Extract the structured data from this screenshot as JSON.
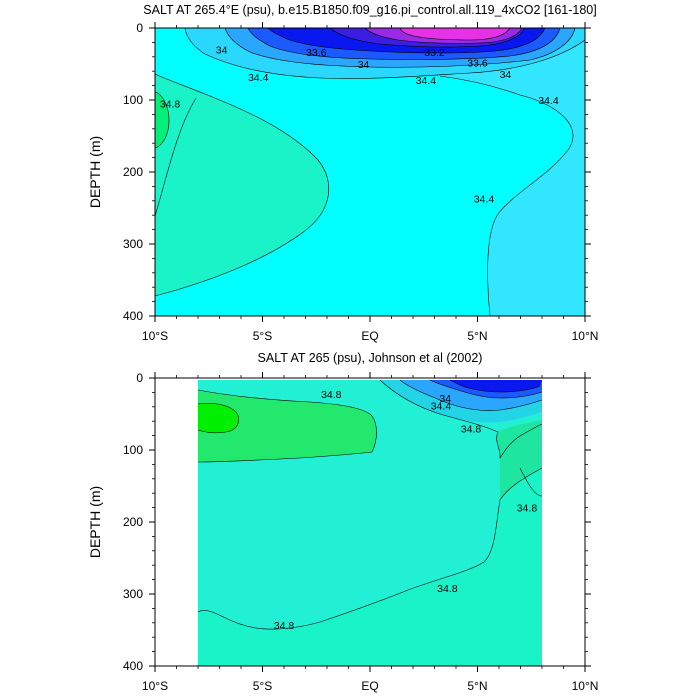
{
  "chart_data": [
    {
      "type": "contour",
      "title": "SALT AT 265.4°E (psu), b.e15.B1850.f09_g16.pi_control.all.119_4xCO2 [161-180]",
      "xlabel": "",
      "ylabel": "DEPTH (m)",
      "xlim": [
        -10,
        10
      ],
      "ylim": [
        400,
        0
      ],
      "x_tick_values": [
        -10,
        -5,
        0,
        5,
        10
      ],
      "x_ticks": [
        "10°S",
        "5°S",
        "EQ",
        "5°N",
        "10°N"
      ],
      "y_ticks": [
        0,
        100,
        200,
        300,
        400
      ],
      "units": "psu",
      "contour_labels": [
        {
          "text": "34",
          "lat": -6.9,
          "depth": 30
        },
        {
          "text": "33.6",
          "lat": -2.5,
          "depth": 33
        },
        {
          "text": "33.2",
          "lat": 3.0,
          "depth": 33
        },
        {
          "text": "34",
          "lat": -0.3,
          "depth": 50
        },
        {
          "text": "33.6",
          "lat": 5.0,
          "depth": 48
        },
        {
          "text": "34",
          "lat": 6.3,
          "depth": 64
        },
        {
          "text": "34.4",
          "lat": -5.2,
          "depth": 68
        },
        {
          "text": "34.4",
          "lat": 2.6,
          "depth": 72
        },
        {
          "text": "34.4",
          "lat": 8.3,
          "depth": 100
        },
        {
          "text": "34.8",
          "lat": -9.3,
          "depth": 105
        },
        {
          "text": "34.4",
          "lat": 5.3,
          "depth": 237
        }
      ]
    },
    {
      "type": "contour",
      "title": "SALT AT 265 (psu), Johnson et al (2002)",
      "xlabel": "",
      "ylabel": "DEPTH (m)",
      "xlim": [
        -10,
        10
      ],
      "ylim": [
        400,
        0
      ],
      "data_extent_lat": [
        -8,
        8
      ],
      "x_tick_values": [
        -10,
        -5,
        0,
        5,
        10
      ],
      "x_ticks": [
        "10°S",
        "5°S",
        "EQ",
        "5°N",
        "10°N"
      ],
      "y_ticks": [
        0,
        100,
        200,
        300,
        400
      ],
      "units": "psu",
      "contour_labels": [
        {
          "text": "34.8",
          "lat": -1.8,
          "depth": 22
        },
        {
          "text": "34",
          "lat": 3.5,
          "depth": 28
        },
        {
          "text": "34.4",
          "lat": 3.3,
          "depth": 38
        },
        {
          "text": "34.8",
          "lat": 4.7,
          "depth": 70
        },
        {
          "text": "34.8",
          "lat": 7.3,
          "depth": 180
        },
        {
          "text": "34.8",
          "lat": 3.6,
          "depth": 292
        },
        {
          "text": "34.8",
          "lat": -4.0,
          "depth": 343
        }
      ]
    }
  ]
}
